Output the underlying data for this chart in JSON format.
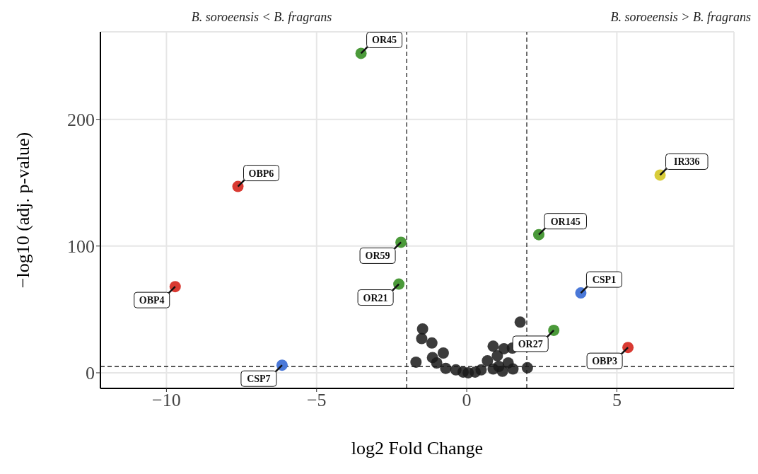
{
  "chart_data": {
    "type": "scatter",
    "xlabel": "log2 Fold Change",
    "ylabel": "−log10 (adj. p-value)",
    "xlim": [
      -12.2,
      8.9
    ],
    "ylim": [
      -12.3,
      269
    ],
    "xticks": [
      {
        "value": -10,
        "label": "−10"
      },
      {
        "value": -5,
        "label": "−5"
      },
      0,
      5
    ],
    "yticks": [
      0,
      100,
      200
    ],
    "grid": true,
    "legend": false,
    "marker": "circle",
    "series": [
      {
        "color": "#1a1a1a",
        "x": [
          -1.47,
          -1.5,
          -1.16,
          -1.69,
          1.78,
          -0.78,
          -1.14,
          0.88,
          1.24,
          1.52,
          1.02,
          0.69,
          1.38,
          2.02,
          1.54,
          -0.36,
          -0.12,
          0.05,
          0.28,
          0.48,
          0.88,
          1.07,
          1.19,
          -1.0,
          -0.7
        ],
        "values": [
          34.6,
          27,
          23.5,
          8.4,
          40,
          15.6,
          12,
          21,
          19,
          19.5,
          13.4,
          9.5,
          7.8,
          4,
          3,
          2.3,
          0.6,
          0,
          0.6,
          2.3,
          3,
          5,
          1.2,
          7.8,
          3.5
        ]
      },
      {
        "color": "#d93a32",
        "x": [
          -7.62,
          -9.71,
          5.37
        ],
        "values": [
          147,
          68,
          20
        ]
      },
      {
        "color": "#4b9a3a",
        "x": [
          -3.52,
          -2.19,
          2.4,
          -2.26,
          2.9
        ],
        "values": [
          252,
          103,
          109,
          70,
          33.5
        ]
      },
      {
        "color": "#4a78d8",
        "x": [
          3.8,
          -6.15
        ],
        "values": [
          63,
          6
        ]
      },
      {
        "color": "#d8cc3a",
        "x": [
          6.44
        ],
        "values": [
          156
        ]
      }
    ],
    "ref_lines": [
      {
        "axis": "x",
        "value": -2,
        "line_style": "dashed"
      },
      {
        "axis": "x",
        "value": 2,
        "line_style": "dashed"
      },
      {
        "axis": "y",
        "value": 5,
        "line_style": "dashed"
      }
    ],
    "annotations": [
      "B. soroeensis < B. fragrans",
      "B. soroeensis > B. fragrans",
      {
        "text": "OR45",
        "x": -3.52,
        "y": 252
      },
      {
        "text": "OBP6",
        "x": -7.62,
        "y": 147
      },
      {
        "text": "IR336",
        "x": 6.44,
        "y": 156
      },
      {
        "text": "OR59",
        "x": -2.19,
        "y": 103
      },
      {
        "text": "OR145",
        "x": 2.4,
        "y": 109
      },
      {
        "text": "OBP4",
        "x": -9.71,
        "y": 68
      },
      {
        "text": "CSP1",
        "x": 3.8,
        "y": 63
      },
      {
        "text": "OR21",
        "x": -2.26,
        "y": 70
      },
      {
        "text": "OR27",
        "x": 2.9,
        "y": 33.5
      },
      {
        "text": "OBP3",
        "x": 5.37,
        "y": 20
      },
      {
        "text": "CSP7",
        "x": -6.15,
        "y": 6
      }
    ]
  }
}
